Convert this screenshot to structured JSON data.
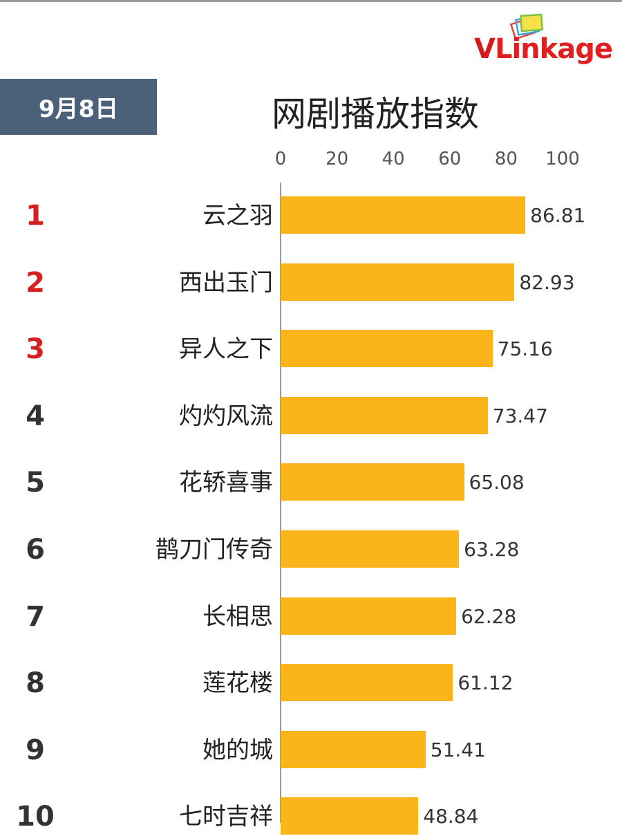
{
  "brand": {
    "logo_text_v": "V",
    "logo_text_rest": "Linkage"
  },
  "header": {
    "date": "9月8日",
    "title": "网剧播放指数"
  },
  "colors": {
    "bar": "#fbb41a",
    "top_rank": "#d42020",
    "rank": "#333333",
    "date_bg": "#4a6179"
  },
  "chart_data": {
    "type": "bar",
    "orientation": "horizontal",
    "title": "网剧播放指数",
    "xlim": [
      0,
      100
    ],
    "x_ticks": [
      "0",
      "20",
      "40",
      "60",
      "80",
      "100"
    ],
    "ranks": [
      "1",
      "2",
      "3",
      "4",
      "5",
      "6",
      "7",
      "8",
      "9",
      "10"
    ],
    "categories": [
      "云之羽",
      "西出玉门",
      "异人之下",
      "灼灼风流",
      "花轿喜事",
      "鹊刀门传奇",
      "长相思",
      "莲花楼",
      "她的城",
      "七时吉祥"
    ],
    "values": [
      86.81,
      82.93,
      75.16,
      73.47,
      65.08,
      63.28,
      62.28,
      61.12,
      51.41,
      48.84
    ],
    "value_labels": [
      "86.81",
      "82.93",
      "75.16",
      "73.47",
      "65.08",
      "63.28",
      "62.28",
      "61.12",
      "51.41",
      "48.84"
    ]
  }
}
